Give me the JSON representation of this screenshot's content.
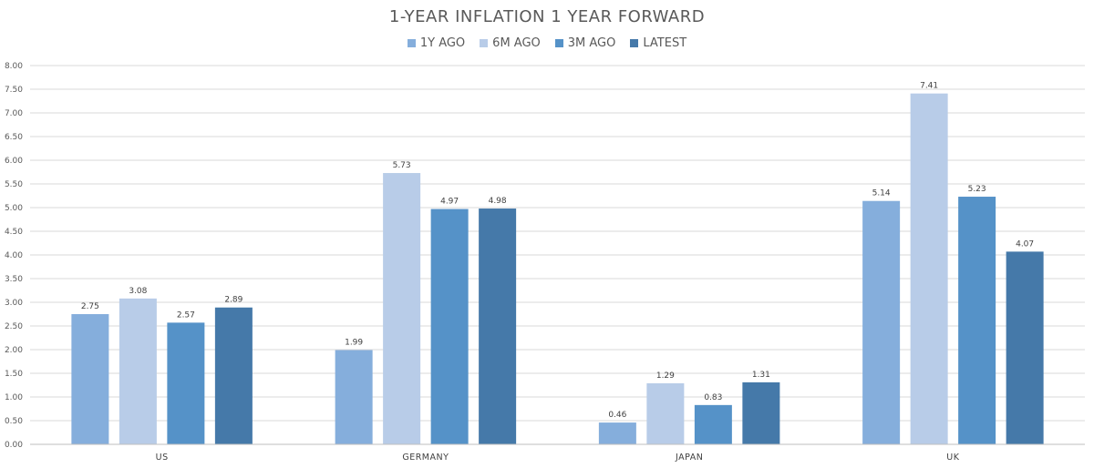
{
  "chart_data": {
    "type": "bar",
    "title": "1-YEAR INFLATION 1 YEAR FORWARD",
    "categories": [
      "US",
      "GERMANY",
      "JAPAN",
      "UK"
    ],
    "series": [
      {
        "name": "1Y AGO",
        "color": "#85AEDC",
        "values": [
          2.75,
          1.99,
          0.46,
          5.14
        ]
      },
      {
        "name": "6M AGO",
        "color": "#B8CCE8",
        "values": [
          3.08,
          5.73,
          1.29,
          7.41
        ]
      },
      {
        "name": "3M AGO",
        "color": "#5592C8",
        "values": [
          2.57,
          4.97,
          0.83,
          5.23
        ]
      },
      {
        "name": "LATEST",
        "color": "#4579A9",
        "values": [
          2.89,
          4.98,
          1.31,
          4.07
        ]
      }
    ],
    "ylim": [
      0,
      8
    ],
    "ytick_step": 0.5,
    "ytick_labels": [
      "0.00",
      "0.50",
      "1.00",
      "1.50",
      "2.00",
      "2.50",
      "3.00",
      "3.50",
      "4.00",
      "4.50",
      "5.00",
      "5.50",
      "6.00",
      "6.50",
      "7.00",
      "7.50",
      "8.00"
    ],
    "value_labels": [
      [
        "2.75",
        "1.99",
        "0.46",
        "5.14"
      ],
      [
        "3.08",
        "5.73",
        "1.29",
        "7.41"
      ],
      [
        "2.57",
        "4.97",
        "0.83",
        "5.23"
      ],
      [
        "2.89",
        "4.98",
        "1.31",
        "4.07"
      ]
    ],
    "xlabel": "",
    "ylabel": "",
    "grid": true,
    "legend_position": "top"
  }
}
